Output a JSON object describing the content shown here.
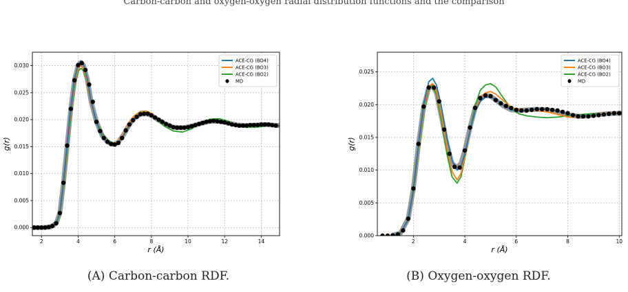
{
  "top_text": "Carbon-carbon and oxygen-oxygen radial distribution functions and the comparison",
  "captions": [
    {
      "label": "(A)",
      "text": "Carbon-carbon RDF."
    },
    {
      "label": "(B)",
      "text": "Oxygen-oxygen RDF."
    }
  ],
  "colors": {
    "bo4": "#1f77b4",
    "bo3": "#ff7f0e",
    "bo2": "#2ca02c",
    "md": "#000000",
    "md_band": "#888888"
  },
  "chart_data": [
    {
      "type": "line",
      "xlabel": "r (Å)",
      "ylabel": "g(r)",
      "xlim": [
        1.5,
        15.0
      ],
      "ylim": [
        -0.0015,
        0.0325
      ],
      "xticks": [
        2,
        4,
        6,
        8,
        10,
        12,
        14
      ],
      "yticks": [
        0.0,
        0.005,
        0.01,
        0.015,
        0.02,
        0.025,
        0.03
      ],
      "grid": true,
      "legend": "top-right",
      "x": [
        1.5,
        2.0,
        2.5,
        2.8,
        3.0,
        3.2,
        3.4,
        3.6,
        3.8,
        4.0,
        4.15,
        4.3,
        4.5,
        4.7,
        5.0,
        5.3,
        5.6,
        5.8,
        6.0,
        6.2,
        6.5,
        6.8,
        7.1,
        7.4,
        7.7,
        8.0,
        8.3,
        8.7,
        9.2,
        9.7,
        10.2,
        10.7,
        11.2,
        11.7,
        12.2,
        12.7,
        13.2,
        13.7,
        14.2,
        14.6,
        15.0
      ],
      "series": [
        {
          "name": "ACE-CG (BO4)",
          "values": [
            0,
            0,
            0.0001,
            0.0008,
            0.0028,
            0.0085,
            0.0155,
            0.0222,
            0.0275,
            0.0303,
            0.0308,
            0.0302,
            0.0276,
            0.0235,
            0.0195,
            0.017,
            0.0158,
            0.0153,
            0.0152,
            0.0158,
            0.0172,
            0.019,
            0.0203,
            0.021,
            0.0212,
            0.0209,
            0.0202,
            0.0193,
            0.0186,
            0.0185,
            0.0188,
            0.0193,
            0.0197,
            0.0197,
            0.0193,
            0.0189,
            0.0189,
            0.019,
            0.0191,
            0.019,
            0.0188
          ]
        },
        {
          "name": "ACE-CG (BO3)",
          "values": [
            0,
            0,
            0.0001,
            0.0007,
            0.0025,
            0.008,
            0.0148,
            0.0215,
            0.0268,
            0.0296,
            0.03,
            0.0294,
            0.027,
            0.0232,
            0.0195,
            0.0172,
            0.016,
            0.0156,
            0.0155,
            0.0161,
            0.0176,
            0.0195,
            0.0208,
            0.0214,
            0.0216,
            0.0212,
            0.0203,
            0.0193,
            0.0186,
            0.0185,
            0.0188,
            0.0194,
            0.0198,
            0.0198,
            0.0194,
            0.0189,
            0.0189,
            0.019,
            0.0191,
            0.019,
            0.0188
          ]
        },
        {
          "name": "ACE-CG (BO2)",
          "values": [
            0,
            0,
            0.0001,
            0.0006,
            0.0022,
            0.0075,
            0.014,
            0.0208,
            0.0262,
            0.029,
            0.0295,
            0.029,
            0.0268,
            0.0232,
            0.0197,
            0.0175,
            0.0163,
            0.0158,
            0.0156,
            0.016,
            0.0174,
            0.0194,
            0.0208,
            0.0215,
            0.0216,
            0.0211,
            0.02,
            0.0188,
            0.0179,
            0.0177,
            0.0183,
            0.0194,
            0.0201,
            0.0202,
            0.0197,
            0.0189,
            0.0186,
            0.0186,
            0.0188,
            0.019,
            0.0189
          ]
        },
        {
          "name": "MD",
          "values": [
            0,
            0,
            0.0001,
            0.0008,
            0.0027,
            0.0083,
            0.0152,
            0.022,
            0.0273,
            0.0301,
            0.0306,
            0.03,
            0.0275,
            0.0235,
            0.0196,
            0.0171,
            0.0159,
            0.0155,
            0.0154,
            0.0159,
            0.0173,
            0.0191,
            0.0204,
            0.021,
            0.0211,
            0.0208,
            0.0201,
            0.0193,
            0.0186,
            0.0185,
            0.0188,
            0.0193,
            0.0197,
            0.0197,
            0.0194,
            0.019,
            0.0189,
            0.019,
            0.0191,
            0.019,
            0.0189
          ]
        }
      ],
      "md_points": {
        "x": [
          1.6,
          1.8,
          2.0,
          2.2,
          2.4,
          2.6,
          2.8,
          3.0,
          3.2,
          3.4,
          3.6,
          3.8,
          4.0,
          4.2,
          4.4,
          4.6,
          4.8,
          5.0,
          5.2,
          5.4,
          5.6,
          5.8,
          6.0,
          6.2,
          6.4,
          6.6,
          6.8,
          7.0,
          7.2,
          7.4,
          7.6,
          7.8,
          8.0,
          8.2,
          8.4,
          8.6,
          8.8,
          9.0,
          9.2,
          9.4,
          9.6,
          9.8,
          10.0,
          10.2,
          10.4,
          10.6,
          10.8,
          11.0,
          11.2,
          11.4,
          11.6,
          11.8,
          12.0,
          12.2,
          12.4,
          12.6,
          12.8,
          13.0,
          13.2,
          13.4,
          13.6,
          13.8,
          14.0,
          14.2,
          14.4,
          14.6,
          14.8
        ],
        "values": [
          0,
          0,
          0,
          0,
          0.0001,
          0.0003,
          0.0008,
          0.0027,
          0.0083,
          0.0152,
          0.022,
          0.0273,
          0.0301,
          0.0305,
          0.0292,
          0.0265,
          0.0233,
          0.0196,
          0.0179,
          0.0166,
          0.0159,
          0.0155,
          0.0154,
          0.0157,
          0.0166,
          0.018,
          0.0191,
          0.0199,
          0.0205,
          0.021,
          0.0211,
          0.0211,
          0.0208,
          0.0204,
          0.02,
          0.0196,
          0.0192,
          0.0189,
          0.0186,
          0.0185,
          0.0185,
          0.0185,
          0.0186,
          0.0188,
          0.019,
          0.0192,
          0.0194,
          0.0196,
          0.0197,
          0.0198,
          0.0197,
          0.0196,
          0.0195,
          0.0193,
          0.0191,
          0.019,
          0.0189,
          0.0189,
          0.0189,
          0.019,
          0.019,
          0.019,
          0.0191,
          0.0191,
          0.0191,
          0.019,
          0.0189
        ]
      }
    },
    {
      "type": "line",
      "xlabel": "r (Å)",
      "ylabel": "g(r)",
      "xlim": [
        0.6,
        10.1
      ],
      "ylim": [
        0.0,
        0.028
      ],
      "xticks": [
        2,
        4,
        6,
        8,
        10
      ],
      "yticks": [
        0.0,
        0.005,
        0.01,
        0.015,
        0.02,
        0.025
      ],
      "grid": true,
      "legend": "top-right",
      "x": [
        1.2,
        1.5,
        1.8,
        2.0,
        2.2,
        2.4,
        2.6,
        2.75,
        2.9,
        3.1,
        3.3,
        3.5,
        3.7,
        3.85,
        4.0,
        4.2,
        4.4,
        4.6,
        4.8,
        5.0,
        5.2,
        5.5,
        5.8,
        6.1,
        6.4,
        6.8,
        7.2,
        7.6,
        8.0,
        8.5,
        9.0,
        9.5,
        10.1
      ],
      "series": [
        {
          "name": "ACE-CG (BO4)",
          "values": [
            5e-05,
            0.0004,
            0.0025,
            0.007,
            0.014,
            0.02,
            0.0235,
            0.024,
            0.023,
            0.0195,
            0.015,
            0.0115,
            0.01,
            0.0105,
            0.0125,
            0.016,
            0.019,
            0.0205,
            0.0211,
            0.0212,
            0.0208,
            0.0199,
            0.0192,
            0.019,
            0.0191,
            0.0193,
            0.0193,
            0.019,
            0.0185,
            0.0182,
            0.0184,
            0.0186,
            0.0187
          ]
        },
        {
          "name": "ACE-CG (BO3)",
          "values": [
            5e-05,
            0.0004,
            0.0025,
            0.0068,
            0.0135,
            0.0195,
            0.0228,
            0.0232,
            0.022,
            0.0182,
            0.0135,
            0.0098,
            0.0085,
            0.0095,
            0.012,
            0.0158,
            0.0192,
            0.021,
            0.0218,
            0.022,
            0.0216,
            0.0206,
            0.0196,
            0.0192,
            0.0191,
            0.0191,
            0.0189,
            0.0185,
            0.0181,
            0.0181,
            0.0184,
            0.0187,
            0.0188
          ]
        },
        {
          "name": "ACE-CG (BO2)",
          "values": [
            5e-05,
            0.0004,
            0.0024,
            0.0066,
            0.0132,
            0.019,
            0.0225,
            0.023,
            0.0215,
            0.0175,
            0.0125,
            0.009,
            0.008,
            0.009,
            0.0118,
            0.016,
            0.0198,
            0.0222,
            0.023,
            0.0232,
            0.0227,
            0.021,
            0.0194,
            0.0186,
            0.0183,
            0.0181,
            0.018,
            0.0181,
            0.0183,
            0.0185,
            0.0186,
            0.0186,
            0.0186
          ]
        },
        {
          "name": "MD",
          "values": [
            5e-05,
            0.0004,
            0.0026,
            0.0072,
            0.014,
            0.0197,
            0.0226,
            0.0228,
            0.0218,
            0.018,
            0.014,
            0.011,
            0.0104,
            0.011,
            0.013,
            0.0165,
            0.0195,
            0.021,
            0.0214,
            0.0213,
            0.0207,
            0.0198,
            0.0192,
            0.0191,
            0.0192,
            0.0193,
            0.0192,
            0.0189,
            0.0184,
            0.0182,
            0.0184,
            0.0186,
            0.0187
          ]
        }
      ],
      "md_points": {
        "x": [
          0.8,
          1.0,
          1.2,
          1.4,
          1.6,
          1.8,
          2.0,
          2.2,
          2.4,
          2.6,
          2.8,
          3.0,
          3.2,
          3.4,
          3.6,
          3.8,
          4.0,
          4.2,
          4.4,
          4.6,
          4.8,
          5.0,
          5.2,
          5.4,
          5.6,
          5.8,
          6.0,
          6.2,
          6.4,
          6.6,
          6.8,
          7.0,
          7.2,
          7.4,
          7.6,
          7.8,
          8.0,
          8.2,
          8.4,
          8.6,
          8.8,
          9.0,
          9.2,
          9.4,
          9.6,
          9.8,
          10.0
        ],
        "values": [
          0,
          0,
          5e-05,
          0.0002,
          0.0008,
          0.0026,
          0.0072,
          0.014,
          0.0197,
          0.0226,
          0.0226,
          0.0205,
          0.0162,
          0.0125,
          0.0105,
          0.0104,
          0.013,
          0.0165,
          0.0195,
          0.021,
          0.0214,
          0.0213,
          0.0207,
          0.0202,
          0.0198,
          0.0195,
          0.0192,
          0.0191,
          0.0191,
          0.0192,
          0.0193,
          0.0193,
          0.0193,
          0.0192,
          0.0191,
          0.0189,
          0.0187,
          0.0184,
          0.0182,
          0.0182,
          0.0182,
          0.0183,
          0.0184,
          0.0185,
          0.0186,
          0.0187,
          0.0187
        ]
      }
    }
  ]
}
